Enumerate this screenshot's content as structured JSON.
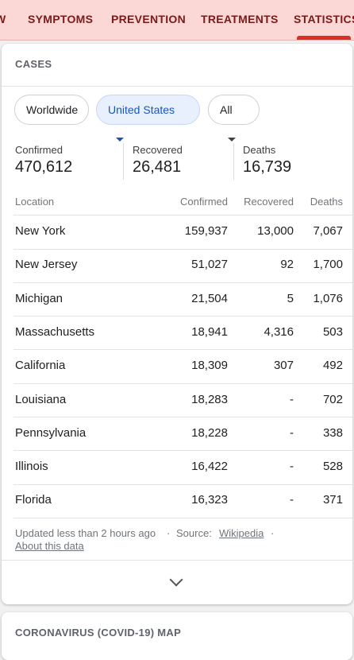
{
  "tabs": [
    "W",
    "SYMPTOMS",
    "PREVENTION",
    "TREATMENTS",
    "STATISTICS"
  ],
  "card": {
    "title": "CASES",
    "filters": [
      "Worldwide",
      "United States",
      "All"
    ],
    "summary": [
      {
        "label": "Confirmed",
        "value": "470,612"
      },
      {
        "label": "Recovered",
        "value": "26,481"
      },
      {
        "label": "Deaths",
        "value": "16,739"
      }
    ],
    "table": {
      "header": [
        "Location",
        "Confirmed",
        "Recovered",
        "Deaths"
      ],
      "rows": [
        [
          "New York",
          "159,937",
          "13,000",
          "7,067"
        ],
        [
          "New Jersey",
          "51,027",
          "92",
          "1,700"
        ],
        [
          "Michigan",
          "21,504",
          "5",
          "1,076"
        ],
        [
          "Massachusetts",
          "18,941",
          "4,316",
          "503"
        ],
        [
          "California",
          "18,309",
          "307",
          "492"
        ],
        [
          "Louisiana",
          "18,283",
          "-",
          "702"
        ],
        [
          "Pennsylvania",
          "18,228",
          "-",
          "338"
        ],
        [
          "Illinois",
          "16,422",
          "-",
          "528"
        ],
        [
          "Florida",
          "16,323",
          "-",
          "371"
        ]
      ]
    },
    "footer": {
      "updated": "Updated less than 2 hours ago",
      "separator": "·",
      "source_label": "Source:",
      "source_link": "Wikipedia",
      "about": "About this data"
    }
  },
  "next_card_title": "CORONAVIRUS (COVID-19) MAP"
}
